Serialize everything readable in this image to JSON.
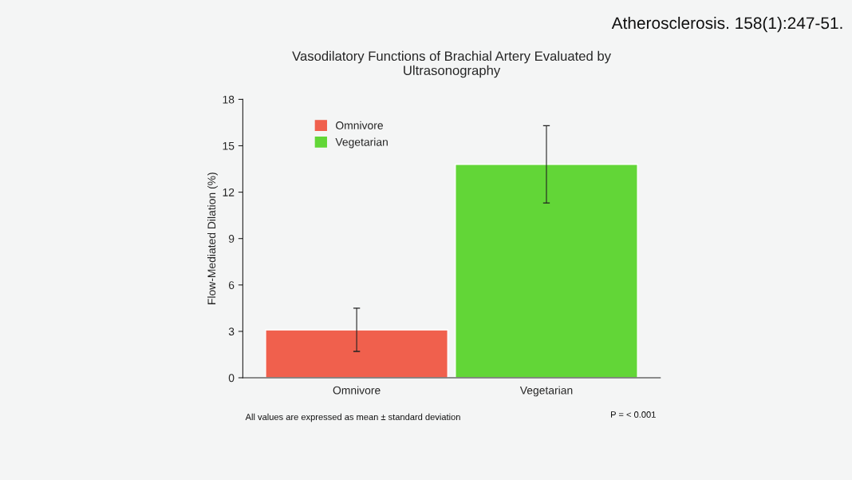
{
  "chart_data": {
    "type": "bar",
    "title": "Vasodilatory Functions of Brachial Artery Evaluated by\nUltrasonography",
    "ylabel": "Flow-Mediated Dilation (%)",
    "categories": [
      "Omnivore",
      "Vegetarian"
    ],
    "series": [
      {
        "name": "Omnivore",
        "color": "#f0604d",
        "values": [
          3.1,
          null
        ],
        "errors": [
          1.4,
          null
        ]
      },
      {
        "name": "Vegetarian",
        "color": "#62d637",
        "values": [
          null,
          13.8
        ],
        "errors": [
          null,
          2.5
        ]
      }
    ],
    "ylim": [
      0,
      18
    ],
    "yticks": [
      0,
      3,
      6,
      9,
      12,
      15,
      18
    ],
    "grid": false,
    "legend": "top left",
    "annotations": [
      "All values are expressed as mean ± standard deviation",
      "P = < 0.001",
      "Atherosclerosis. 158(1):247-51."
    ]
  }
}
